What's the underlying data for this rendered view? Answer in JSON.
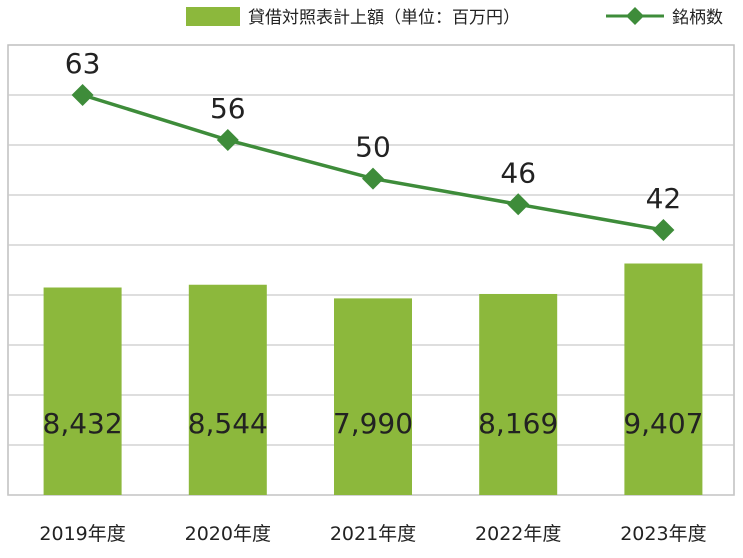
{
  "chart_data": {
    "type": "bar",
    "categories": [
      "2019年度",
      "2020年度",
      "2021年度",
      "2022年度",
      "2023年度"
    ],
    "series": [
      {
        "name": "貸借対照表計上額（単位：百万円）",
        "kind": "bar",
        "values": [
          8432,
          8544,
          7990,
          8169,
          9407
        ],
        "labels": [
          "8,432",
          "8,544",
          "7,990",
          "8,169",
          "9,407"
        ],
        "color": "#8cb83c"
      },
      {
        "name": "銘柄数",
        "kind": "line",
        "marker": "diamond",
        "values": [
          63,
          56,
          50,
          46,
          42
        ],
        "labels": [
          "63",
          "56",
          "50",
          "46",
          "42"
        ],
        "color": "#3e8c3a"
      }
    ],
    "legend": "top",
    "grid": true,
    "colors": {
      "gridline": "#c9c9c9",
      "border": "#bfbfbf"
    }
  }
}
